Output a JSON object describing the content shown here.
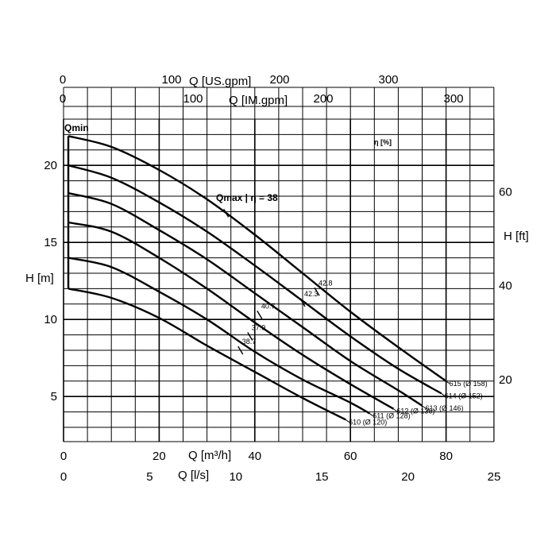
{
  "chart_data": {
    "type": "line",
    "title": "",
    "x_axis": {
      "label": "Q [m³/h]",
      "range": [
        0,
        90
      ],
      "ticks": [
        "0",
        "20",
        "40",
        "60",
        "80"
      ],
      "tick_values": [
        0,
        20,
        40,
        60,
        80
      ]
    },
    "x_axis_ls": {
      "label": "Q [l/s]",
      "range": [
        0,
        25
      ],
      "ticks": [
        "0",
        "5",
        "10",
        "15",
        "20",
        "25"
      ],
      "tick_values": [
        0,
        5,
        10,
        15,
        20,
        25
      ]
    },
    "x_axis_usgpm": {
      "label": "Q [US.gpm]",
      "ticks": [
        "0",
        "100",
        "200",
        "300"
      ],
      "tick_values": [
        0,
        100,
        200,
        300
      ]
    },
    "x_axis_imgpm": {
      "label": "Q [IM.gpm]",
      "ticks": [
        "0",
        "100",
        "200",
        "300"
      ],
      "tick_values": [
        0,
        100,
        200,
        300
      ]
    },
    "y_axis": {
      "label": "H [m]",
      "range": [
        2,
        23
      ],
      "ticks": [
        "5",
        "10",
        "15",
        "20"
      ],
      "tick_values": [
        5,
        10,
        15,
        20
      ]
    },
    "y_axis_right": {
      "label": "H [ft]",
      "ticks": [
        "20",
        "40",
        "60"
      ],
      "tick_values": [
        20,
        40,
        60
      ]
    },
    "eta_label": "η [%]",
    "qmin_label": "Qmin",
    "qmax_label": "Qmax | η = 38",
    "qmin_x": 1,
    "series": [
      {
        "name": "615 (Ø 158)",
        "x": [
          1,
          10,
          20,
          30,
          40,
          50,
          60,
          70,
          80
        ],
        "y": [
          21.9,
          21.2,
          19.7,
          17.8,
          15.5,
          13.0,
          10.5,
          8.2,
          6.0
        ]
      },
      {
        "name": "614 (Ø 152)",
        "x": [
          1,
          10,
          20,
          30,
          40,
          50,
          60,
          70,
          79
        ],
        "y": [
          20.0,
          19.2,
          17.6,
          15.7,
          13.5,
          11.2,
          8.9,
          6.8,
          5.2
        ]
      },
      {
        "name": "613 (Ø 146)",
        "x": [
          1,
          10,
          20,
          30,
          40,
          50,
          60,
          70,
          75
        ],
        "y": [
          18.2,
          17.5,
          15.8,
          13.9,
          11.7,
          9.5,
          7.3,
          5.4,
          4.4
        ]
      },
      {
        "name": "612 (Ø 136)",
        "x": [
          1,
          10,
          20,
          30,
          40,
          50,
          60,
          69
        ],
        "y": [
          16.3,
          15.7,
          14.0,
          12.0,
          9.8,
          7.7,
          5.8,
          4.2
        ]
      },
      {
        "name": "611 (Ø 128)",
        "x": [
          1,
          10,
          20,
          30,
          40,
          50,
          60,
          64
        ],
        "y": [
          14.0,
          13.4,
          11.8,
          10.0,
          7.9,
          6.1,
          4.6,
          3.9
        ]
      },
      {
        "name": "610 (Ø 120)",
        "x": [
          1,
          10,
          20,
          30,
          40,
          50,
          59
        ],
        "y": [
          12.0,
          11.4,
          10.1,
          8.3,
          6.6,
          4.9,
          3.5
        ]
      }
    ],
    "efficiency_points": [
      {
        "label": "42.8",
        "x": 53,
        "y": 11.8
      },
      {
        "label": "42.3",
        "x": 50,
        "y": 11.1
      },
      {
        "label": "40.7",
        "x": 41,
        "y": 10.3
      },
      {
        "label": "37.9",
        "x": 39,
        "y": 8.9
      },
      {
        "label": "38.7",
        "x": 37,
        "y": 8.0
      },
      {
        "label": "",
        "x": 34,
        "y": 16.9
      }
    ],
    "grid": true,
    "legend": "labels at curve ends"
  }
}
